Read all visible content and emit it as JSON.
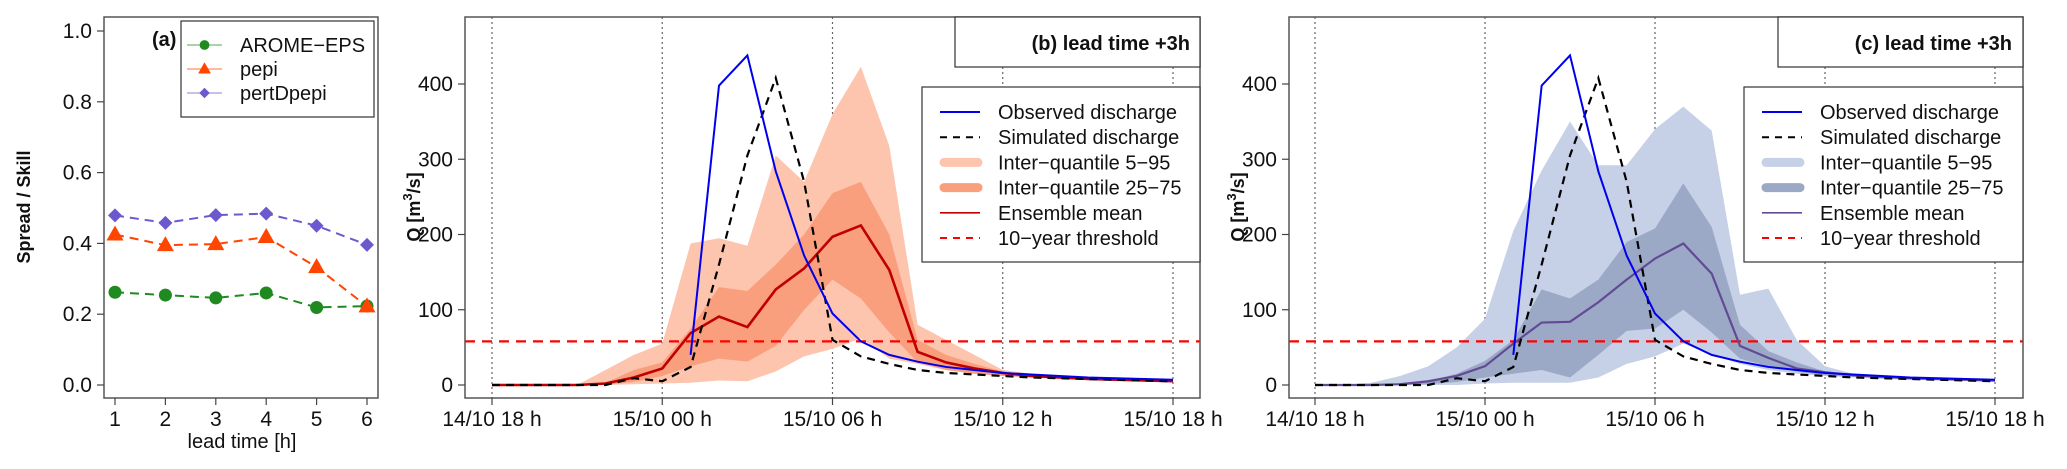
{
  "chart_data": [
    {
      "id": "a",
      "type": "line",
      "panel_label": "(a)",
      "title": "",
      "xlabel": "lead time [h]",
      "ylabel": "Spread / Skill",
      "x": [
        1,
        2,
        3,
        4,
        5,
        6
      ],
      "xticks": [
        "1",
        "2",
        "3",
        "4",
        "5",
        "6"
      ],
      "yticks": [
        "0.0",
        "0.2",
        "0.4",
        "0.6",
        "0.8",
        "1.0"
      ],
      "ylim": [
        0,
        1
      ],
      "legend_position": "top-right",
      "series": [
        {
          "name": "AROME−EPS",
          "color": "#1f8a1f",
          "marker": "circle",
          "values": [
            0.262,
            0.254,
            0.246,
            0.26,
            0.219,
            0.223
          ]
        },
        {
          "name": "pepi",
          "color": "#ff4500",
          "marker": "triangle",
          "values": [
            0.425,
            0.395,
            0.398,
            0.418,
            0.333,
            0.222
          ]
        },
        {
          "name": "pertDpepi",
          "color": "#6a5acd",
          "marker": "diamond",
          "values": [
            0.479,
            0.458,
            0.48,
            0.484,
            0.45,
            0.396
          ]
        }
      ]
    },
    {
      "id": "b",
      "type": "area",
      "title": "(b) lead time +3h",
      "xlabel": "",
      "ylabel": "Q [m³/s]",
      "ylabel_main": "Q [m",
      "ylabel_sup": "3",
      "ylabel_end": "/s]",
      "x_hours_since_start": [
        0,
        1,
        2,
        3,
        4,
        5,
        6,
        7,
        8,
        9,
        10,
        11,
        12,
        13,
        14,
        15,
        16,
        17,
        18,
        19,
        20,
        21,
        22,
        23,
        24
      ],
      "xticks": [
        "14/10 18 h",
        "15/10 00 h",
        "15/10 06 h",
        "15/10 12 h",
        "15/10 18 h"
      ],
      "xtick_hours": [
        0,
        6,
        12,
        18,
        24
      ],
      "yticks": [
        "0",
        "100",
        "200",
        "300",
        "400"
      ],
      "ytick_values": [
        0,
        100,
        200,
        300,
        400
      ],
      "ylim": [
        -18,
        490
      ],
      "legend_position": "top-right",
      "threshold": 58,
      "colors": {
        "observed": "#0000ee",
        "simulated": "#000000",
        "q5_95": "#fdc4ae",
        "q25_75": "#fa9f7d",
        "mean": "#c00000",
        "threshold": "#ff0000"
      },
      "legend": [
        "Observed discharge",
        "Simulated discharge",
        "Inter−quantile 5−95",
        "Inter−quantile 25−75",
        "Ensemble mean",
        "10−year threshold"
      ],
      "observed": {
        "start_hour": 7,
        "values": [
          40,
          398,
          438,
          284,
          172,
          95,
          58,
          40,
          31,
          24,
          20,
          16,
          14,
          12,
          10,
          9,
          8,
          7
        ]
      },
      "simulated": [
        0,
        0,
        0,
        0,
        0,
        9,
        5,
        24,
        160,
        305,
        408,
        270,
        60,
        38,
        28,
        20,
        16,
        14,
        12,
        10,
        9,
        8,
        7,
        6,
        5
      ],
      "mean": [
        0,
        0,
        0,
        0,
        2,
        10,
        22,
        69,
        91,
        77,
        127,
        155,
        197,
        212,
        153,
        44,
        30,
        22,
        16,
        12,
        10,
        8,
        7,
        6,
        5
      ],
      "q5": [
        0,
        0,
        0,
        0,
        0,
        1,
        2,
        3,
        6,
        5,
        18,
        38,
        48,
        62,
        35,
        28,
        20,
        15,
        12,
        10,
        8,
        7,
        6,
        5,
        4
      ],
      "q25": [
        0,
        0,
        0,
        0,
        0,
        4,
        12,
        25,
        35,
        31,
        52,
        100,
        140,
        115,
        70,
        30,
        20,
        15,
        12,
        10,
        9,
        8,
        7,
        6,
        5
      ],
      "q75": [
        0,
        0,
        0,
        0,
        3,
        20,
        30,
        75,
        130,
        125,
        160,
        200,
        255,
        270,
        200,
        60,
        40,
        28,
        18,
        13,
        11,
        9,
        8,
        7,
        6
      ],
      "q95": [
        0,
        0,
        0,
        0,
        20,
        40,
        55,
        188,
        195,
        185,
        305,
        270,
        360,
        423,
        318,
        80,
        60,
        40,
        20,
        15,
        12,
        10,
        8,
        7,
        6
      ]
    },
    {
      "id": "c",
      "type": "area",
      "title": "(c) lead time +3h",
      "xlabel": "",
      "ylabel": "Q [m³/s]",
      "ylabel_main": "Q [m",
      "ylabel_sup": "3",
      "ylabel_end": "/s]",
      "x_hours_since_start": [
        0,
        1,
        2,
        3,
        4,
        5,
        6,
        7,
        8,
        9,
        10,
        11,
        12,
        13,
        14,
        15,
        16,
        17,
        18,
        19,
        20,
        21,
        22,
        23,
        24
      ],
      "xticks": [
        "14/10 18 h",
        "15/10 00 h",
        "15/10 06 h",
        "15/10 12 h",
        "15/10 18 h"
      ],
      "xtick_hours": [
        0,
        6,
        12,
        18,
        24
      ],
      "yticks": [
        "0",
        "100",
        "200",
        "300",
        "400"
      ],
      "ytick_values": [
        0,
        100,
        200,
        300,
        400
      ],
      "ylim": [
        -18,
        490
      ],
      "legend_position": "top-right",
      "threshold": 58,
      "colors": {
        "observed": "#0000ee",
        "simulated": "#000000",
        "q5_95": "#c6d0e6",
        "q25_75": "#9ba8c6",
        "mean": "#634a94",
        "threshold": "#ff0000"
      },
      "legend": [
        "Observed discharge",
        "Simulated discharge",
        "Inter−quantile 5−95",
        "Inter−quantile 25−75",
        "Ensemble mean",
        "10−year threshold"
      ],
      "observed": {
        "start_hour": 7,
        "values": [
          40,
          398,
          438,
          284,
          172,
          95,
          58,
          40,
          31,
          24,
          20,
          16,
          14,
          12,
          10,
          9,
          8,
          7
        ]
      },
      "simulated": [
        0,
        0,
        0,
        0,
        0,
        9,
        5,
        24,
        160,
        305,
        408,
        270,
        60,
        38,
        28,
        20,
        16,
        14,
        12,
        10,
        9,
        8,
        7,
        6,
        5
      ],
      "mean": [
        0,
        0,
        0,
        1,
        5,
        12,
        25,
        55,
        83,
        84,
        110,
        140,
        168,
        188,
        148,
        52,
        36,
        22,
        17,
        13,
        11,
        9,
        8,
        7,
        6
      ],
      "q5": [
        0,
        0,
        0,
        0,
        0,
        0,
        2,
        3,
        3,
        3,
        10,
        28,
        38,
        55,
        40,
        28,
        20,
        15,
        12,
        10,
        8,
        7,
        6,
        5,
        4
      ],
      "q25": [
        0,
        0,
        0,
        0,
        1,
        4,
        10,
        15,
        20,
        10,
        40,
        72,
        75,
        100,
        70,
        35,
        25,
        18,
        13,
        11,
        9,
        8,
        7,
        6,
        5
      ],
      "q75": [
        0,
        0,
        0,
        1,
        5,
        15,
        32,
        60,
        127,
        115,
        140,
        190,
        208,
        268,
        210,
        80,
        45,
        30,
        18,
        14,
        11,
        9,
        8,
        7,
        6
      ],
      "q95": [
        0,
        0,
        3,
        12,
        25,
        50,
        88,
        205,
        285,
        350,
        292,
        292,
        340,
        370,
        338,
        120,
        128,
        60,
        25,
        15,
        12,
        10,
        8,
        7,
        6
      ]
    }
  ]
}
